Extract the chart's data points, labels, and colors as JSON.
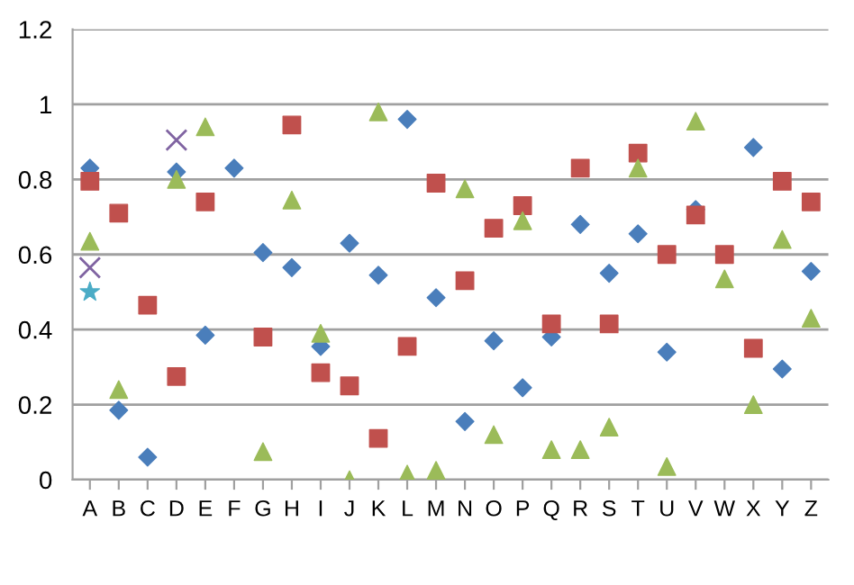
{
  "chart_data": {
    "type": "scatter",
    "categories": [
      "A",
      "B",
      "C",
      "D",
      "E",
      "F",
      "G",
      "H",
      "I",
      "J",
      "K",
      "L",
      "M",
      "N",
      "O",
      "P",
      "Q",
      "R",
      "S",
      "T",
      "U",
      "V",
      "W",
      "X",
      "Y",
      "Z"
    ],
    "series": [
      {
        "color": "#4a7ebb",
        "marker": "diamond",
        "values": [
          0.83,
          0.185,
          0.06,
          0.82,
          0.385,
          0.83,
          0.605,
          0.565,
          0.355,
          0.63,
          0.545,
          0.96,
          0.485,
          0.155,
          0.37,
          0.245,
          0.38,
          0.68,
          0.55,
          0.655,
          0.34,
          0.72,
          null,
          0.885,
          0.295,
          0.555
        ]
      },
      {
        "color": "#c0504d",
        "marker": "square",
        "values": [
          0.795,
          0.71,
          0.465,
          0.275,
          0.74,
          null,
          0.38,
          0.945,
          0.285,
          0.25,
          0.11,
          0.355,
          0.79,
          0.53,
          0.67,
          0.73,
          0.415,
          0.83,
          0.415,
          0.87,
          0.6,
          0.705,
          0.6,
          0.35,
          0.795,
          0.74
        ]
      },
      {
        "color": "#9bbb59",
        "marker": "triangle",
        "values": [
          0.635,
          0.24,
          null,
          0.8,
          0.94,
          null,
          0.075,
          0.745,
          0.39,
          0.0,
          0.98,
          0.015,
          0.025,
          0.775,
          0.12,
          0.69,
          0.08,
          0.08,
          0.14,
          0.83,
          0.035,
          0.955,
          0.535,
          0.2,
          0.64,
          0.43
        ]
      },
      {
        "color": "#8064a2",
        "marker": "cross",
        "values": [
          0.565,
          null,
          null,
          0.905,
          null,
          null,
          null,
          null,
          null,
          null,
          null,
          null,
          null,
          null,
          null,
          null,
          null,
          null,
          null,
          null,
          null,
          null,
          null,
          null,
          null,
          null
        ]
      },
      {
        "color": "#4bacc6",
        "marker": "star",
        "values": [
          0.5,
          null,
          null,
          null,
          null,
          null,
          null,
          null,
          null,
          null,
          null,
          null,
          null,
          null,
          null,
          null,
          null,
          null,
          null,
          null,
          null,
          null,
          null,
          null,
          null,
          null
        ]
      }
    ],
    "ylim": [
      0,
      1.2
    ],
    "yticks": [
      0,
      0.2,
      0.4,
      0.6,
      0.8,
      1,
      1.2
    ],
    "grid": "y",
    "legend": false
  }
}
